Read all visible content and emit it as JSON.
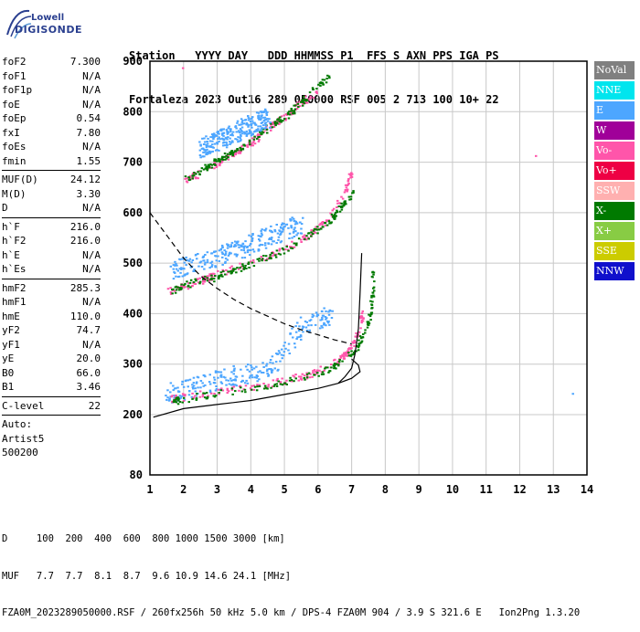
{
  "logo": {
    "brand": "Lowell",
    "name": "DIGISONDE"
  },
  "header": {
    "line1": "Station   YYYY DAY   DDD HHMMSS P1  FFS S AXN PPS IGA PS",
    "line2": "Fortaleza 2023 Out16 289 050000 RSF 005 2 713 100 10+ 22"
  },
  "params": [
    {
      "k": "foF2",
      "v": "7.300"
    },
    {
      "k": "foF1",
      "v": "N/A"
    },
    {
      "k": "foF1p",
      "v": "N/A"
    },
    {
      "k": "foE",
      "v": "N/A"
    },
    {
      "k": "foEp",
      "v": "0.54"
    },
    {
      "k": "fxI",
      "v": "7.80"
    },
    {
      "k": "foEs",
      "v": "N/A"
    },
    {
      "k": "fmin",
      "v": "1.55"
    },
    {
      "sep": true
    },
    {
      "k": "MUF(D)",
      "v": "24.12"
    },
    {
      "k": "M(D)",
      "v": "3.30"
    },
    {
      "k": "D",
      "v": "N/A"
    },
    {
      "sep": true
    },
    {
      "k": "h`F",
      "v": "216.0"
    },
    {
      "k": "h`F2",
      "v": "216.0"
    },
    {
      "k": "h`E",
      "v": "N/A"
    },
    {
      "k": "h`Es",
      "v": "N/A"
    },
    {
      "sep": true
    },
    {
      "k": "hmF2",
      "v": "285.3"
    },
    {
      "k": "hmF1",
      "v": "N/A"
    },
    {
      "k": "hmE",
      "v": "110.0"
    },
    {
      "k": "yF2",
      "v": "74.7"
    },
    {
      "k": "yF1",
      "v": "N/A"
    },
    {
      "k": "yE",
      "v": "20.0"
    },
    {
      "k": "B0",
      "v": "66.0"
    },
    {
      "k": "B1",
      "v": "3.46"
    },
    {
      "sep": true
    },
    {
      "k": "C-level",
      "v": "22"
    },
    {
      "sep": true
    },
    {
      "k": "Auto:",
      "v": ""
    },
    {
      "k": "Artist5",
      "v": ""
    },
    {
      "k": "500200",
      "v": ""
    }
  ],
  "legend": [
    {
      "label": "NoVal",
      "color": "#808080"
    },
    {
      "label": "NNE",
      "color": "#00e5ee"
    },
    {
      "label": "E",
      "color": "#4da6ff"
    },
    {
      "label": "W",
      "color": "#a00099"
    },
    {
      "label": "Vo-",
      "color": "#ff55aa"
    },
    {
      "label": "Vo+",
      "color": "#ee0044"
    },
    {
      "label": "SSW",
      "color": "#ffb0b0"
    },
    {
      "label": "X-",
      "color": "#007a00"
    },
    {
      "label": "X+",
      "color": "#88cc44"
    },
    {
      "label": "SSE",
      "color": "#cccc00"
    },
    {
      "label": "NNW",
      "color": "#1010cc"
    }
  ],
  "footer": {
    "line1": "D     100  200  400  600  800 1000 1500 3000 [km]",
    "line2": "MUF   7.7  7.7  8.1  8.7  9.6 10.9 14.6 24.1 [MHz]",
    "line3": "FZA0M_2023289050000.RSF / 260fx256h 50 kHz 5.0 km / DPS-4 FZA0M 904 / 3.9 S 321.6 E   Ion2Png 1.3.20"
  },
  "chart_data": {
    "type": "scatter",
    "xlim": [
      1,
      14
    ],
    "ylim": [
      80,
      900
    ],
    "xticks": [
      1,
      2,
      3,
      4,
      5,
      6,
      7,
      8,
      9,
      10,
      11,
      12,
      13,
      14
    ],
    "yticks": [
      80,
      200,
      300,
      400,
      500,
      600,
      700,
      800,
      900
    ],
    "xtick_labels": [
      "1",
      "2",
      "3",
      "4",
      "5",
      "6",
      "7",
      "8",
      "9",
      "10",
      "11",
      "12",
      "13",
      "14"
    ],
    "ytick_labels": [
      "80",
      "200",
      "300",
      "400",
      "500",
      "600",
      "700",
      "800",
      "900"
    ],
    "grid": true,
    "series": [
      {
        "name": "E",
        "color": "#4da6ff",
        "shape": "band",
        "points": [
          [
            1.5,
            242
          ],
          [
            2,
            250
          ],
          [
            2.5,
            262
          ],
          [
            3,
            270
          ],
          [
            3.5,
            278
          ],
          [
            4,
            282
          ],
          [
            4.5,
            290
          ],
          [
            5,
            330
          ],
          [
            5.5,
            375
          ],
          [
            6,
            392
          ],
          [
            6.4,
            395
          ]
        ]
      },
      {
        "name": "Vo-",
        "color": "#ff55aa",
        "shape": "trace",
        "points": [
          [
            1.6,
            232
          ],
          [
            2,
            236
          ],
          [
            3,
            246
          ],
          [
            4,
            256
          ],
          [
            5,
            268
          ],
          [
            5.8,
            283
          ],
          [
            6.3,
            297
          ],
          [
            6.7,
            315
          ],
          [
            7,
            338
          ],
          [
            7.2,
            370
          ],
          [
            7.3,
            405
          ]
        ]
      },
      {
        "name": "X-",
        "color": "#007a00",
        "shape": "trace",
        "points": [
          [
            1.7,
            228
          ],
          [
            2,
            233
          ],
          [
            3,
            243
          ],
          [
            4,
            254
          ],
          [
            5,
            265
          ],
          [
            5.8,
            279
          ],
          [
            6.4,
            295
          ],
          [
            6.8,
            312
          ],
          [
            7.1,
            330
          ],
          [
            7.3,
            355
          ],
          [
            7.5,
            390
          ],
          [
            7.6,
            440
          ],
          [
            7.6,
            485
          ]
        ]
      },
      {
        "name": "Vo-",
        "color": "#ff55aa",
        "shape": "trace2",
        "points": [
          [
            1.5,
            445
          ],
          [
            2,
            456
          ],
          [
            2.5,
            467
          ],
          [
            3,
            480
          ],
          [
            4,
            503
          ],
          [
            5,
            530
          ],
          [
            5.5,
            548
          ],
          [
            6,
            572
          ],
          [
            6.4,
            600
          ],
          [
            6.8,
            645
          ],
          [
            6.95,
            680
          ]
        ]
      },
      {
        "name": "X-",
        "color": "#007a00",
        "shape": "trace2",
        "points": [
          [
            1.6,
            445
          ],
          [
            2,
            458
          ],
          [
            3,
            475
          ],
          [
            4,
            500
          ],
          [
            5,
            528
          ],
          [
            6,
            568
          ],
          [
            6.5,
            597
          ],
          [
            7,
            640
          ]
        ]
      },
      {
        "name": "E",
        "color": "#4da6ff",
        "shape": "band2",
        "points": [
          [
            1.6,
            490
          ],
          [
            2.3,
            500
          ],
          [
            3,
            515
          ],
          [
            3.5,
            525
          ],
          [
            4,
            540
          ],
          [
            4.5,
            555
          ],
          [
            5,
            565
          ],
          [
            5.5,
            580
          ]
        ]
      },
      {
        "name": "Vo-",
        "color": "#ff55aa",
        "shape": "trace3",
        "points": [
          [
            2,
            665
          ],
          [
            2.5,
            680
          ],
          [
            3,
            700
          ],
          [
            3.5,
            720
          ],
          [
            4,
            740
          ],
          [
            4.5,
            770
          ],
          [
            5,
            790
          ],
          [
            5.5,
            820
          ],
          [
            6,
            845
          ]
        ]
      },
      {
        "name": "X-",
        "color": "#007a00",
        "shape": "trace3",
        "points": [
          [
            2,
            668
          ],
          [
            2.5,
            685
          ],
          [
            3,
            705
          ],
          [
            3.5,
            725
          ],
          [
            4,
            745
          ],
          [
            4.5,
            770
          ],
          [
            5,
            792
          ],
          [
            5.5,
            820
          ],
          [
            6,
            855
          ],
          [
            6.3,
            870
          ]
        ]
      },
      {
        "name": "E",
        "color": "#4da6ff",
        "shape": "band3",
        "points": [
          [
            2.5,
            730
          ],
          [
            3,
            745
          ],
          [
            3.5,
            760
          ],
          [
            4,
            775
          ],
          [
            4.5,
            790
          ]
        ]
      },
      {
        "name": "profile",
        "color": "#000000",
        "shape": "line",
        "points": [
          [
            1.1,
            195
          ],
          [
            2,
            212
          ],
          [
            3,
            220
          ],
          [
            4,
            228
          ],
          [
            5,
            240
          ],
          [
            6,
            252
          ],
          [
            6.6,
            262
          ],
          [
            7,
            272
          ],
          [
            7.25,
            285
          ],
          [
            7.2,
            298
          ],
          [
            7.0,
            310
          ]
        ]
      },
      {
        "name": "profile2",
        "color": "#000000",
        "shape": "line",
        "points": [
          [
            6.6,
            262
          ],
          [
            6.8,
            275
          ],
          [
            7.0,
            292
          ],
          [
            7.1,
            320
          ],
          [
            7.2,
            370
          ],
          [
            7.25,
            440
          ],
          [
            7.3,
            520
          ]
        ]
      },
      {
        "name": "muf",
        "color": "#000000",
        "shape": "dashed",
        "points": [
          [
            1,
            600
          ],
          [
            1.5,
            555
          ],
          [
            2,
            510
          ],
          [
            2.5,
            475
          ],
          [
            3,
            450
          ],
          [
            3.5,
            428
          ],
          [
            4,
            410
          ],
          [
            4.5,
            395
          ],
          [
            5,
            380
          ],
          [
            5.5,
            368
          ],
          [
            6,
            358
          ],
          [
            6.5,
            348
          ],
          [
            7,
            340
          ]
        ]
      }
    ]
  }
}
